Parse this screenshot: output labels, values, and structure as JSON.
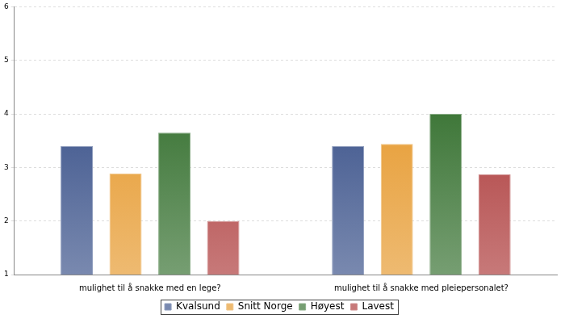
{
  "chart_data": {
    "type": "bar",
    "categories": [
      "mulighet til å snakke med en lege?",
      "mulighet til å snakke med pleiepersonalet?"
    ],
    "series": [
      {
        "name": "Kvalsund",
        "color": "#1f3a7a",
        "values": [
          3.4,
          3.4
        ]
      },
      {
        "name": "Snitt Norge",
        "color": "#e38c12",
        "values": [
          2.89,
          3.44
        ]
      },
      {
        "name": "Høyest",
        "color": "#1b5e14",
        "values": [
          3.65,
          4.0
        ]
      },
      {
        "name": "Lavest",
        "color": "#a11f1f",
        "values": [
          2.0,
          2.87
        ]
      }
    ],
    "ylim": [
      1,
      6
    ],
    "yticks": [
      1,
      2,
      3,
      4,
      5,
      6
    ],
    "grid": true,
    "legend": "bottom"
  }
}
